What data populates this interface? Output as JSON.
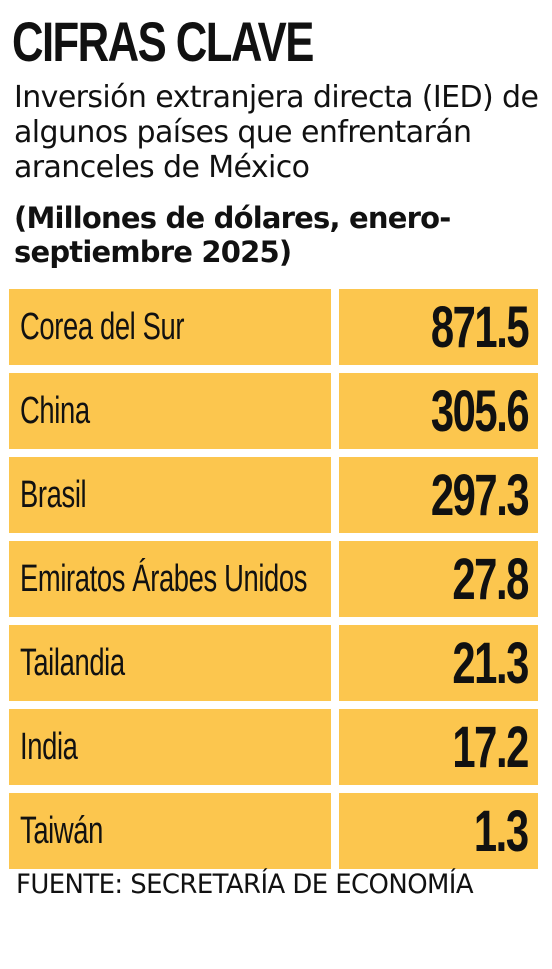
{
  "header": {
    "title": "CIFRAS CLAVE",
    "subtitle": "Inversión extranjera directa (IED) de algunos países que enfrentarán aranceles de México",
    "units": "(Millones de dólares, enero-septiembre 2025)"
  },
  "chart_data": {
    "type": "table",
    "title": "CIFRAS CLAVE",
    "subtitle": "Inversión extranjera directa (IED) de algunos países que enfrentarán aranceles de México",
    "units": "(Millones de dólares, enero-septiembre 2025)",
    "rows": [
      {
        "country": "Corea del Sur",
        "value": "871.5"
      },
      {
        "country": "China",
        "value": "305.6"
      },
      {
        "country": "Brasil",
        "value": "297.3"
      },
      {
        "country": "Emiratos Árabes Unidos",
        "value": "27.8"
      },
      {
        "country": "Tailandia",
        "value": "21.3"
      },
      {
        "country": "India",
        "value": "17.2"
      },
      {
        "country": "Taiwán",
        "value": "1.3"
      }
    ],
    "source": "FUENTE: SECRETARÍA DE ECONOMÍA"
  },
  "colors": {
    "cell_background": "#fcc64e",
    "text": "#111111",
    "page_background": "#ffffff"
  }
}
